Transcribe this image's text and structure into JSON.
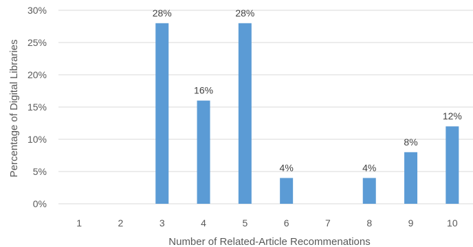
{
  "chart_data": {
    "type": "bar",
    "title": "",
    "xlabel": "Number of Related-Article Recommenations",
    "ylabel": "Percentage of Digital Libraries",
    "categories": [
      "1",
      "2",
      "3",
      "4",
      "5",
      "6",
      "7",
      "8",
      "9",
      "10"
    ],
    "values": [
      0,
      0,
      28,
      16,
      28,
      4,
      0,
      4,
      8,
      12
    ],
    "data_labels": [
      "",
      "",
      "28%",
      "16%",
      "28%",
      "4%",
      "",
      "4%",
      "8%",
      "12%"
    ],
    "ylim": [
      0,
      30
    ],
    "yticks": [
      0,
      5,
      10,
      15,
      20,
      25,
      30
    ],
    "ytick_labels": [
      "0%",
      "5%",
      "10%",
      "15%",
      "20%",
      "25%",
      "30%"
    ],
    "grid": true,
    "legend": "none",
    "bar_color": "#5B9BD5",
    "grid_color": "#D9D9D9"
  }
}
